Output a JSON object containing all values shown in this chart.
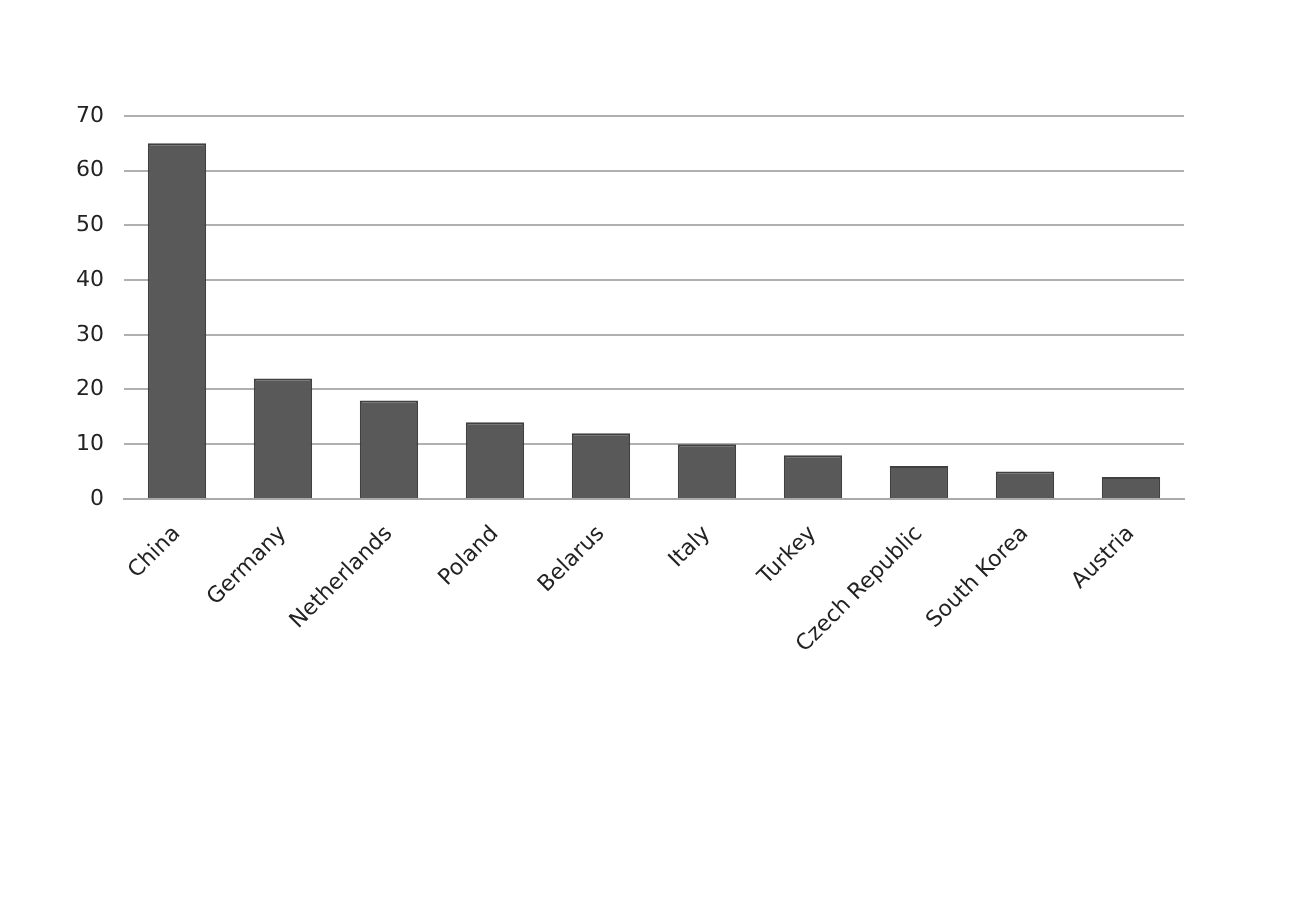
{
  "chart_data": {
    "type": "bar",
    "categories": [
      "China",
      "Germany",
      "Netherlands",
      "Poland",
      "Belarus",
      "Italy",
      "Turkey",
      "Czech Republic",
      "South Korea",
      "Austria"
    ],
    "values": [
      65,
      22,
      18,
      14,
      12,
      10,
      8,
      6,
      5,
      4
    ],
    "color": "#595959",
    "ylim": [
      0,
      70
    ],
    "yticks": [
      0,
      10,
      20,
      30,
      40,
      50,
      60,
      70
    ],
    "grid": "y",
    "legend": false
  }
}
